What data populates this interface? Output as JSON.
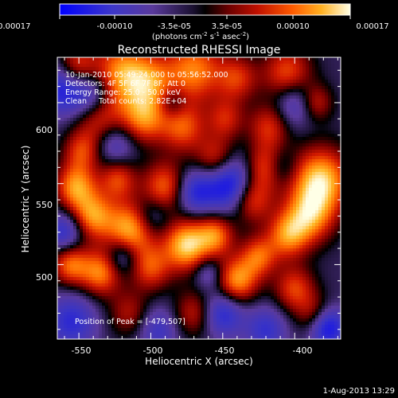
{
  "colorbar": {
    "tick_labels": [
      "-0.00017",
      "-0.00010",
      "-3.5e-05",
      "3.5e-05",
      "0.00010",
      "0.00017"
    ],
    "units": "(photons cm",
    "units_sup1": "-2",
    "units_mid": " s",
    "units_sup2": "-1",
    "units_end": " asec",
    "units_sup3": "-2",
    "units_close": ")"
  },
  "plot": {
    "title": "Reconstructed RHESSI Image",
    "xlabel": "Heliocentric X (arcsec)",
    "ylabel": "Heliocentric Y (arcsec)",
    "x_ticks": [
      "-550",
      "-500",
      "-450",
      "-400"
    ],
    "y_ticks": [
      "600",
      "550",
      "500"
    ]
  },
  "overlay": {
    "line1": "10-Jan-2010 05:49:24.000 to 05:56:52.000",
    "line2": "Detectors: 4F 5F 6F 7F 8F, Att 0",
    "line3": "Energy Range: 25.0 - 50.0 keV",
    "line4": "Clean     Total counts: 2.82E+04",
    "peak": "Position of Peak = [-479,507]"
  },
  "footer": {
    "timestamp": "1-Aug-2013 13:29"
  },
  "chart_data": {
    "type": "heatmap",
    "title": "Reconstructed RHESSI Image",
    "xlabel": "Heliocentric X (arcsec)",
    "ylabel": "Heliocentric Y (arcsec)",
    "xlim": [
      -565,
      -368
    ],
    "ylim": [
      454,
      628
    ],
    "color_range": [
      -0.00017,
      0.00017
    ],
    "colormap_stops": [
      "#0000ff",
      "#5a3a9c",
      "#000000",
      "#c01000",
      "#ff7a00",
      "#ffffd8"
    ],
    "blobs": [
      {
        "x": -552,
        "y": 622,
        "v": 0.00012,
        "r": 10
      },
      {
        "x": -520,
        "y": 618,
        "v": 0.00014,
        "r": 14
      },
      {
        "x": -500,
        "y": 612,
        "v": 0.0001,
        "r": 12
      },
      {
        "x": -470,
        "y": 620,
        "v": 0.00013,
        "r": 14
      },
      {
        "x": -440,
        "y": 615,
        "v": 9e-05,
        "r": 10
      },
      {
        "x": -405,
        "y": 618,
        "v": 0.00011,
        "r": 12
      },
      {
        "x": -385,
        "y": 600,
        "v": 8e-05,
        "r": 8
      },
      {
        "x": -535,
        "y": 590,
        "v": 0.0001,
        "r": 12
      },
      {
        "x": -505,
        "y": 590,
        "v": 0.00012,
        "r": 11
      },
      {
        "x": -478,
        "y": 585,
        "v": 0.00011,
        "r": 11
      },
      {
        "x": -448,
        "y": 590,
        "v": 8e-05,
        "r": 9
      },
      {
        "x": -418,
        "y": 585,
        "v": 9e-05,
        "r": 10
      },
      {
        "x": -548,
        "y": 570,
        "v": 9e-05,
        "r": 9
      },
      {
        "x": -455,
        "y": 565,
        "v": 0.0001,
        "r": 10
      },
      {
        "x": -420,
        "y": 560,
        "v": 0.00011,
        "r": 10
      },
      {
        "x": -552,
        "y": 548,
        "v": 0.00014,
        "r": 10
      },
      {
        "x": -523,
        "y": 553,
        "v": 0.0001,
        "r": 9
      },
      {
        "x": -490,
        "y": 548,
        "v": 0.00012,
        "r": 11
      },
      {
        "x": -430,
        "y": 540,
        "v": 0.00011,
        "r": 10
      },
      {
        "x": -382,
        "y": 552,
        "v": 0.00017,
        "r": 14
      },
      {
        "x": -390,
        "y": 530,
        "v": 0.00013,
        "r": 12
      },
      {
        "x": -540,
        "y": 530,
        "v": 0.00013,
        "r": 10
      },
      {
        "x": -514,
        "y": 522,
        "v": 0.00016,
        "r": 12
      },
      {
        "x": -475,
        "y": 512,
        "v": 0.00017,
        "r": 11
      },
      {
        "x": -455,
        "y": 518,
        "v": 0.00012,
        "r": 9
      },
      {
        "x": -425,
        "y": 505,
        "v": 0.00011,
        "r": 9
      },
      {
        "x": -405,
        "y": 518,
        "v": 0.00012,
        "r": 10
      },
      {
        "x": -556,
        "y": 500,
        "v": 0.00012,
        "r": 9
      },
      {
        "x": -535,
        "y": 495,
        "v": 0.00013,
        "r": 10
      },
      {
        "x": -500,
        "y": 498,
        "v": 0.0001,
        "r": 10
      },
      {
        "x": -440,
        "y": 490,
        "v": 0.00014,
        "r": 10
      },
      {
        "x": -400,
        "y": 485,
        "v": 0.0001,
        "r": 10
      },
      {
        "x": -515,
        "y": 470,
        "v": 7e-05,
        "r": 10
      },
      {
        "x": -470,
        "y": 470,
        "v": 8e-05,
        "r": 10
      },
      {
        "x": -385,
        "y": 468,
        "v": 9e-05,
        "r": 9
      },
      {
        "x": -560,
        "y": 610,
        "v": -0.00012,
        "r": 12
      },
      {
        "x": -540,
        "y": 605,
        "v": -9e-05,
        "r": 10
      },
      {
        "x": -445,
        "y": 550,
        "v": -0.00014,
        "r": 12
      },
      {
        "x": -470,
        "y": 545,
        "v": -0.0001,
        "r": 10
      },
      {
        "x": -400,
        "y": 600,
        "v": -8e-05,
        "r": 10
      },
      {
        "x": -525,
        "y": 575,
        "v": -8e-05,
        "r": 10
      },
      {
        "x": -560,
        "y": 520,
        "v": -9e-05,
        "r": 9
      },
      {
        "x": -500,
        "y": 530,
        "v": -7e-05,
        "r": 9
      },
      {
        "x": -450,
        "y": 470,
        "v": -0.0001,
        "r": 10
      },
      {
        "x": -420,
        "y": 460,
        "v": -8e-05,
        "r": 10
      },
      {
        "x": -378,
        "y": 462,
        "v": -0.00015,
        "r": 9
      },
      {
        "x": -555,
        "y": 465,
        "v": -9e-05,
        "r": 12
      },
      {
        "x": -495,
        "y": 460,
        "v": -7e-05,
        "r": 10
      },
      {
        "x": -410,
        "y": 560,
        "v": -6e-05,
        "r": 8
      },
      {
        "x": -485,
        "y": 600,
        "v": -6e-05,
        "r": 7
      },
      {
        "x": -520,
        "y": 505,
        "v": -8e-05,
        "r": 8
      },
      {
        "x": -460,
        "y": 495,
        "v": -6e-05,
        "r": 7
      }
    ],
    "peak_position": [
      -479,
      507
    ]
  }
}
